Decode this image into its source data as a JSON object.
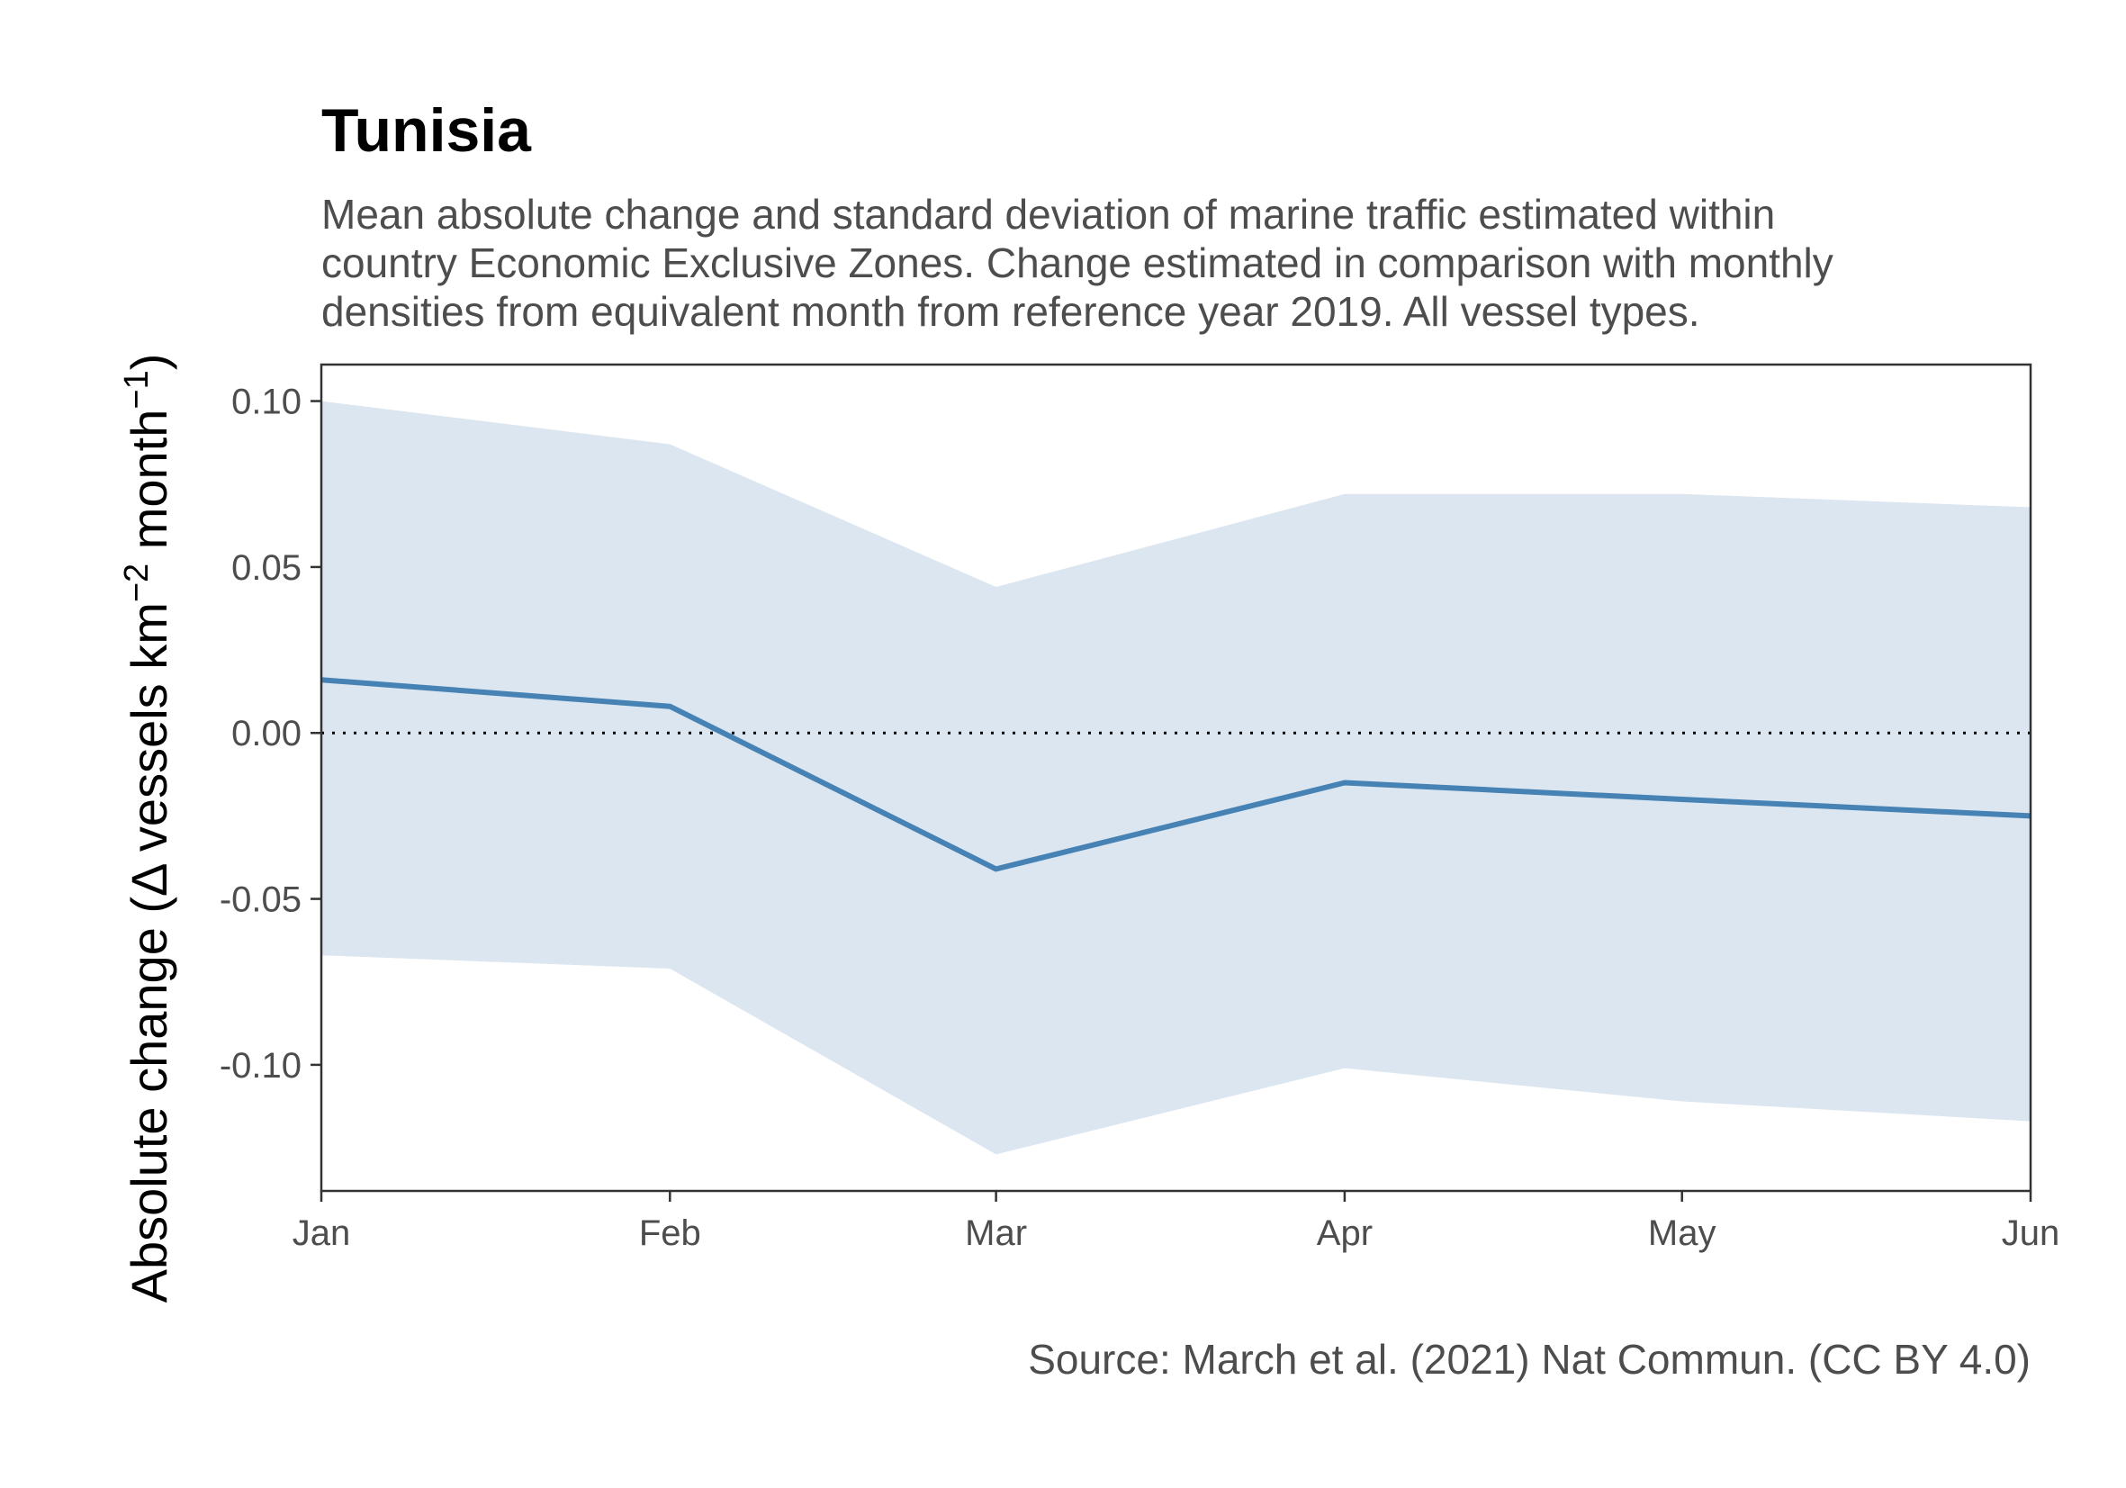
{
  "chart_data": {
    "type": "line",
    "title": "Tunisia",
    "subtitle": [
      "Mean absolute change and standard deviation of marine traffic estimated within",
      "country Economic Exclusive Zones. Change estimated in comparison with monthly",
      "densities from equivalent month from reference year 2019. All vessel types."
    ],
    "caption": "Source: March et al. (2021) Nat Commun. (CC BY 4.0)",
    "xlabel": "",
    "ylabel": {
      "prefix": "Absolute change (",
      "delta": "Δ",
      "vessels": " vessels km",
      "exp1": "−2",
      "month": " month",
      "exp2": "−1",
      "suffix": ")"
    },
    "categories": [
      "Jan",
      "Feb",
      "Mar",
      "Apr",
      "May",
      "Jun"
    ],
    "x": [
      1,
      32,
      61,
      92,
      122,
      153
    ],
    "series": [
      {
        "values": [
          0.016,
          0.008,
          -0.041,
          -0.015,
          -0.02,
          -0.025
        ],
        "band_upper": [
          0.1,
          0.087,
          0.044,
          0.072,
          0.072,
          0.068
        ],
        "band_lower": [
          -0.067,
          -0.071,
          -0.127,
          -0.101,
          -0.111,
          -0.117
        ]
      }
    ],
    "yticks": [
      "0.10",
      "0.05",
      "0.00",
      "-0.05",
      "-0.10"
    ],
    "ytick_values": [
      0.1,
      0.05,
      0.0,
      -0.05,
      -0.1
    ],
    "ylim": [
      -0.138,
      0.111
    ],
    "reference_line": 0,
    "grid": false,
    "colors": {
      "line": "#4682B4",
      "band": "#DCE6F0",
      "axis": "#333333",
      "reference": "#000000"
    }
  }
}
